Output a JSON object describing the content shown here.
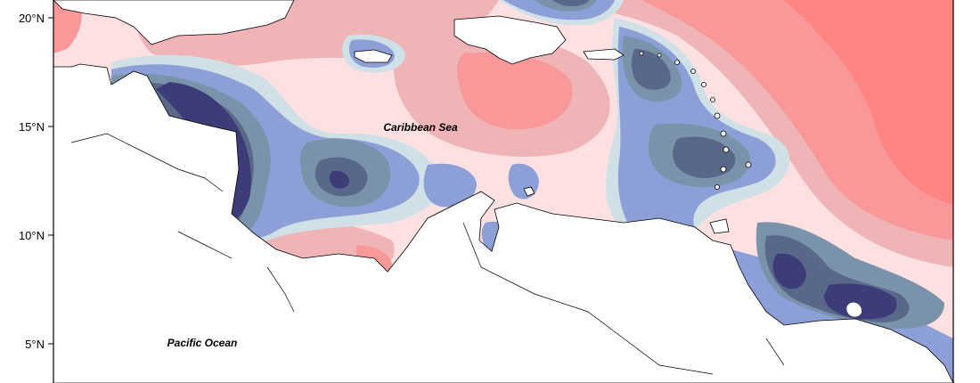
{
  "map": {
    "sea_labels": {
      "caribbean": "Caribbean Sea",
      "pacific": "Pacific Ocean"
    },
    "lat_ticks": [
      "20°N",
      "15°N",
      "10°N",
      "5°N"
    ],
    "colors": {
      "dark_navy": "#3c3c78",
      "slate_blue": "#596888",
      "gray_blue": "#7b93aa",
      "periwinkle": "#8c9fd6",
      "pale_blue": "#cfe0e6",
      "pale_pink": "#fde0e2",
      "light_pink": "#efb4b6",
      "salmon": "#f99898",
      "coral": "#ff8484",
      "land": "#ffffff",
      "border": "#000000"
    }
  }
}
